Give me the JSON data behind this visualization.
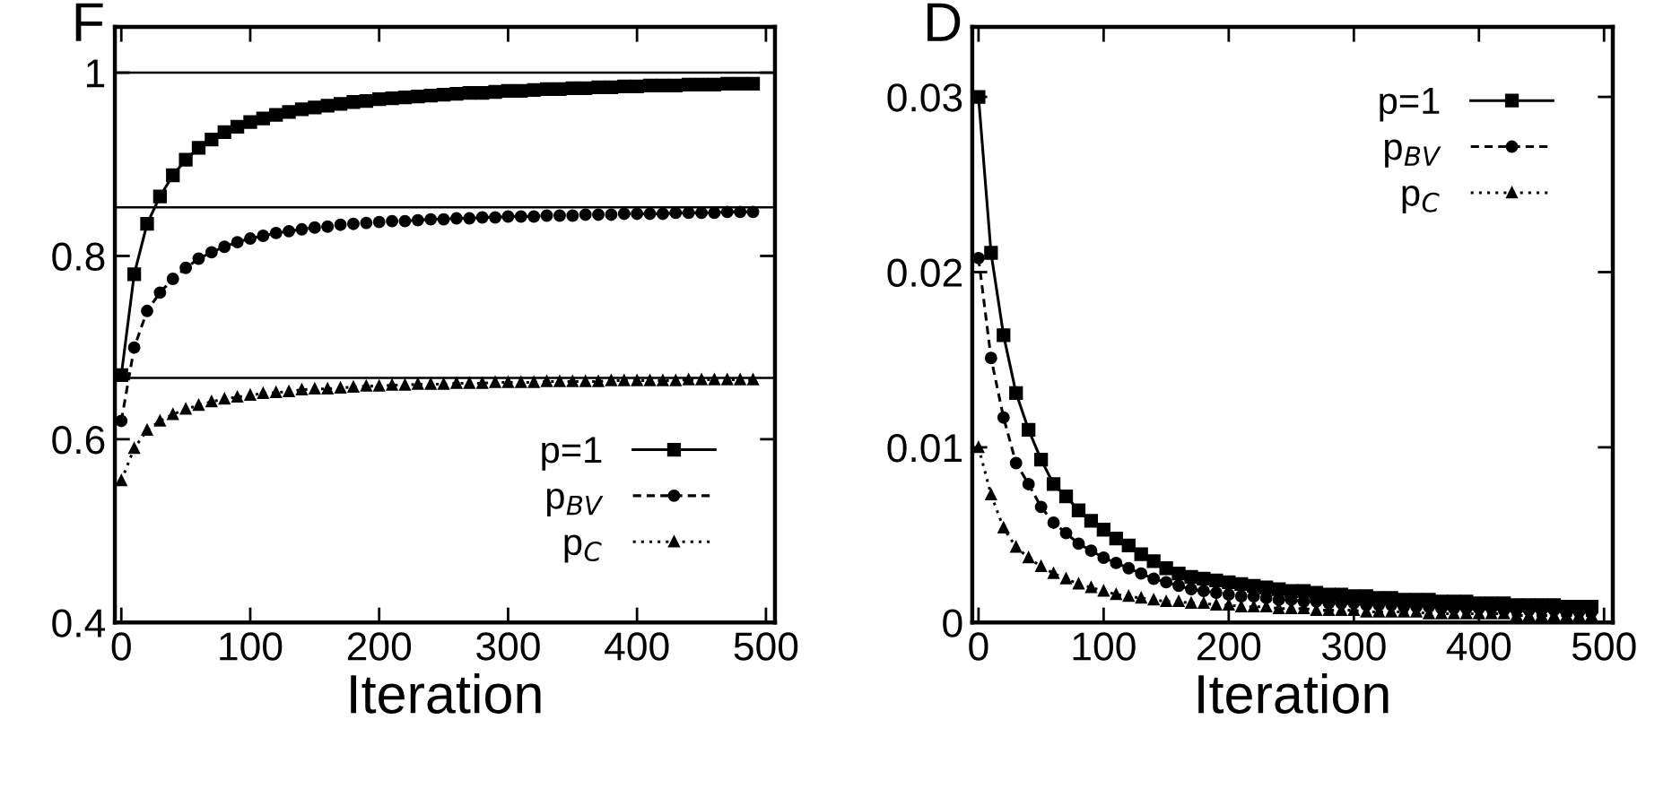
{
  "chart_data": [
    {
      "type": "line",
      "ylabel": "F",
      "xlabel": "Iteration",
      "xlim": [
        -5,
        507
      ],
      "ylim": [
        0.4,
        1.05
      ],
      "xticks": [
        0,
        100,
        200,
        300,
        400,
        500
      ],
      "yticks": [
        0.4,
        0.6,
        0.8,
        1
      ],
      "grid": false,
      "legend": "bottom right",
      "x": [
        0,
        10,
        20,
        30,
        40,
        50,
        60,
        70,
        80,
        90,
        100,
        110,
        120,
        130,
        140,
        150,
        160,
        170,
        180,
        190,
        200,
        210,
        220,
        230,
        240,
        250,
        260,
        270,
        280,
        290,
        300,
        310,
        320,
        330,
        340,
        350,
        360,
        370,
        380,
        390,
        400,
        410,
        420,
        430,
        440,
        450,
        460,
        470,
        480,
        490
      ],
      "ref_lines": [
        {
          "axis": "y",
          "value": 1,
          "color": "#000000"
        },
        {
          "axis": "y",
          "value": 0.853,
          "color": "#000000"
        },
        {
          "axis": "y",
          "value": 0.667,
          "color": "#000000"
        }
      ],
      "series": [
        {
          "name": "p=1",
          "color": "#000000",
          "marker": "square",
          "line_style": "solid",
          "values": [
            0.67,
            0.78,
            0.835,
            0.865,
            0.888,
            0.905,
            0.918,
            0.927,
            0.935,
            0.941,
            0.946,
            0.95,
            0.954,
            0.957,
            0.96,
            0.962,
            0.964,
            0.966,
            0.968,
            0.969,
            0.971,
            0.972,
            0.973,
            0.974,
            0.975,
            0.976,
            0.977,
            0.978,
            0.978,
            0.979,
            0.98,
            0.98,
            0.981,
            0.982,
            0.982,
            0.983,
            0.983,
            0.984,
            0.984,
            0.985,
            0.985,
            0.986,
            0.986,
            0.986,
            0.987,
            0.987,
            0.987,
            0.988,
            0.988,
            0.988
          ]
        },
        {
          "name": "p$_{BV}$",
          "color": "#000000",
          "marker": "circle",
          "line_style": "dashed",
          "values": [
            0.62,
            0.7,
            0.74,
            0.76,
            0.775,
            0.787,
            0.797,
            0.804,
            0.81,
            0.815,
            0.819,
            0.822,
            0.825,
            0.827,
            0.829,
            0.831,
            0.832,
            0.834,
            0.835,
            0.836,
            0.837,
            0.838,
            0.838,
            0.839,
            0.84,
            0.84,
            0.841,
            0.841,
            0.842,
            0.842,
            0.843,
            0.843,
            0.843,
            0.844,
            0.844,
            0.844,
            0.845,
            0.845,
            0.845,
            0.846,
            0.846,
            0.846,
            0.846,
            0.847,
            0.847,
            0.847,
            0.847,
            0.848,
            0.848,
            0.848
          ]
        },
        {
          "name": "p$_{C}$",
          "color": "#000000",
          "marker": "triangle",
          "line_style": "dotted",
          "values": [
            0.555,
            0.59,
            0.61,
            0.62,
            0.627,
            0.633,
            0.637,
            0.641,
            0.644,
            0.646,
            0.648,
            0.65,
            0.651,
            0.652,
            0.654,
            0.655,
            0.655,
            0.656,
            0.657,
            0.658,
            0.658,
            0.659,
            0.659,
            0.66,
            0.66,
            0.66,
            0.661,
            0.661,
            0.661,
            0.662,
            0.662,
            0.662,
            0.662,
            0.663,
            0.663,
            0.663,
            0.663,
            0.663,
            0.664,
            0.664,
            0.664,
            0.664,
            0.664,
            0.664,
            0.665,
            0.665,
            0.665,
            0.665,
            0.665,
            0.665
          ]
        }
      ]
    },
    {
      "type": "line",
      "ylabel": "D",
      "xlabel": "Iteration",
      "xlim": [
        -5,
        507
      ],
      "ylim": [
        0,
        0.034
      ],
      "xticks": [
        0,
        100,
        200,
        300,
        400,
        500
      ],
      "yticks": [
        0,
        0.01,
        0.02,
        0.03
      ],
      "grid": false,
      "legend": "top right",
      "x": [
        0,
        10,
        20,
        30,
        40,
        50,
        60,
        70,
        80,
        90,
        100,
        110,
        120,
        130,
        140,
        150,
        160,
        170,
        180,
        190,
        200,
        210,
        220,
        230,
        240,
        250,
        260,
        270,
        280,
        290,
        300,
        310,
        320,
        330,
        340,
        350,
        360,
        370,
        380,
        390,
        400,
        410,
        420,
        430,
        440,
        450,
        460,
        470,
        480,
        490
      ],
      "series": [
        {
          "name": "p=1",
          "color": "#000000",
          "marker": "square",
          "line_style": "solid",
          "values": [
            0.03,
            0.0211,
            0.0164,
            0.0131,
            0.011,
            0.0093,
            0.0079,
            0.0072,
            0.0064,
            0.0058,
            0.0053,
            0.0048,
            0.0044,
            0.0039,
            0.0035,
            0.0031,
            0.0028,
            0.0026,
            0.0025,
            0.0024,
            0.0023,
            0.0022,
            0.0021,
            0.002,
            0.0019,
            0.0018,
            0.0018,
            0.0017,
            0.0016,
            0.0016,
            0.0015,
            0.0015,
            0.0014,
            0.0014,
            0.0013,
            0.0013,
            0.0013,
            0.0012,
            0.0012,
            0.0012,
            0.0011,
            0.0011,
            0.0011,
            0.001,
            0.001,
            0.001,
            0.001,
            0.0009,
            0.0009,
            0.0009
          ]
        },
        {
          "name": "p$_{BV}$",
          "color": "#000000",
          "marker": "circle",
          "line_style": "dashed",
          "values": [
            0.0208,
            0.0151,
            0.0117,
            0.0091,
            0.0079,
            0.0066,
            0.0057,
            0.0051,
            0.0045,
            0.0041,
            0.0037,
            0.0034,
            0.0031,
            0.0028,
            0.0025,
            0.0023,
            0.0021,
            0.0019,
            0.0018,
            0.0017,
            0.0016,
            0.0015,
            0.0015,
            0.0014,
            0.0013,
            0.0013,
            0.0012,
            0.0012,
            0.0011,
            0.0011,
            0.0011,
            0.001,
            0.001,
            0.001,
            0.0009,
            0.0009,
            0.0009,
            0.0008,
            0.0008,
            0.0008,
            0.0008,
            0.0008,
            0.0007,
            0.0007,
            0.0007,
            0.0007,
            0.0007,
            0.0006,
            0.0006,
            0.0006
          ]
        },
        {
          "name": "p$_{C}$",
          "color": "#000000",
          "marker": "triangle",
          "line_style": "dotted",
          "values": [
            0.01,
            0.0073,
            0.0054,
            0.0043,
            0.0037,
            0.0032,
            0.0028,
            0.0025,
            0.0022,
            0.002,
            0.0018,
            0.0016,
            0.0015,
            0.0014,
            0.0013,
            0.0012,
            0.0012,
            0.0011,
            0.0011,
            0.001,
            0.001,
            0.0009,
            0.0009,
            0.0009,
            0.0008,
            0.0008,
            0.0008,
            0.0007,
            0.0007,
            0.0007,
            0.0007,
            0.0006,
            0.0006,
            0.0006,
            0.0006,
            0.0006,
            0.0005,
            0.0005,
            0.0005,
            0.0005,
            0.0005,
            0.0005,
            0.0005,
            0.0004,
            0.0004,
            0.0004,
            0.0004,
            0.0004,
            0.0004,
            0.0004
          ]
        }
      ]
    }
  ]
}
